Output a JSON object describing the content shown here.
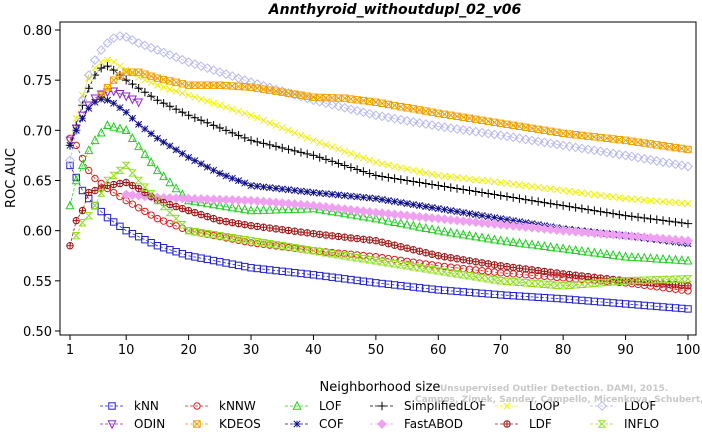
{
  "chart_data": {
    "type": "line",
    "title": "Annthyroid_withoutdupl_02_v06",
    "xlabel": "Neighborhood size",
    "ylabel": "ROC AUC",
    "xlim": [
      0,
      100
    ],
    "ylim": [
      0.5,
      0.8
    ],
    "x_ticks": [
      "1",
      "10",
      "20",
      "30",
      "40",
      "50",
      "60",
      "70",
      "80",
      "90",
      "100"
    ],
    "y_ticks": [
      "0.50",
      "0.55",
      "0.60",
      "0.65",
      "0.70",
      "0.75",
      "0.80"
    ],
    "watermark": [
      "Unsupervised Outlier Detection. DAMI, 2015.",
      "Campos, Zimek, Sander, Campello, Micenkova, Schubert, Assent, Houle"
    ],
    "legend_position": "bottom",
    "series": [
      {
        "name": "kNN",
        "color": "#1f1fd0",
        "marker": "square",
        "x": [
          1,
          2,
          3,
          4,
          5,
          7,
          10,
          15,
          20,
          30,
          40,
          50,
          60,
          70,
          80,
          90,
          100
        ],
        "y": [
          0.665,
          0.653,
          0.64,
          0.632,
          0.625,
          0.613,
          0.6,
          0.585,
          0.575,
          0.563,
          0.556,
          0.548,
          0.541,
          0.536,
          0.532,
          0.527,
          0.522
        ]
      },
      {
        "name": "kNNW",
        "color": "#e01e1e",
        "marker": "circle",
        "x": [
          1,
          2,
          3,
          4,
          5,
          7,
          10,
          15,
          20,
          30,
          40,
          50,
          60,
          70,
          80,
          90,
          100
        ],
        "y": [
          0.692,
          0.685,
          0.672,
          0.66,
          0.652,
          0.642,
          0.63,
          0.612,
          0.6,
          0.588,
          0.58,
          0.574,
          0.565,
          0.558,
          0.553,
          0.548,
          0.54
        ]
      },
      {
        "name": "LOF",
        "color": "#20d020",
        "marker": "triangle",
        "x": [
          1,
          2,
          3,
          4,
          5,
          7,
          10,
          15,
          20,
          25,
          30,
          40,
          50,
          60,
          70,
          80,
          90,
          100
        ],
        "y": [
          0.625,
          0.65,
          0.665,
          0.68,
          0.69,
          0.705,
          0.7,
          0.66,
          0.63,
          0.625,
          0.62,
          0.622,
          0.612,
          0.6,
          0.59,
          0.582,
          0.574,
          0.57
        ]
      },
      {
        "name": "SimplifiedLOF",
        "color": "#000000",
        "marker": "plus",
        "x": [
          1,
          2,
          3,
          4,
          5,
          6,
          7,
          8,
          10,
          12,
          15,
          20,
          30,
          40,
          50,
          60,
          70,
          80,
          90,
          100
        ],
        "y": [
          0.685,
          0.705,
          0.725,
          0.742,
          0.755,
          0.762,
          0.764,
          0.76,
          0.75,
          0.742,
          0.73,
          0.715,
          0.69,
          0.675,
          0.655,
          0.645,
          0.635,
          0.625,
          0.615,
          0.607
        ]
      },
      {
        "name": "LoOP",
        "color": "#f0f000",
        "marker": "x",
        "x": [
          1,
          2,
          3,
          4,
          5,
          6,
          7,
          8,
          10,
          12,
          15,
          20,
          30,
          40,
          50,
          60,
          70,
          80,
          90,
          100
        ],
        "y": [
          0.688,
          0.712,
          0.735,
          0.752,
          0.762,
          0.768,
          0.77,
          0.768,
          0.76,
          0.753,
          0.745,
          0.735,
          0.715,
          0.69,
          0.668,
          0.655,
          0.648,
          0.64,
          0.632,
          0.627
        ]
      },
      {
        "name": "LDOF",
        "color": "#b8b8f0",
        "marker": "diamond",
        "x": [
          1,
          2,
          3,
          4,
          5,
          6,
          7,
          8,
          9,
          10,
          12,
          15,
          20,
          30,
          40,
          50,
          60,
          70,
          80,
          90,
          100
        ],
        "y": [
          0.67,
          0.7,
          0.73,
          0.755,
          0.77,
          0.78,
          0.787,
          0.792,
          0.794,
          0.793,
          0.787,
          0.78,
          0.768,
          0.748,
          0.73,
          0.715,
          0.704,
          0.695,
          0.685,
          0.675,
          0.664
        ]
      },
      {
        "name": "ODIN",
        "color": "#9020d0",
        "marker": "triangle-down",
        "x": [
          1,
          2,
          3,
          4,
          5,
          6,
          7,
          8,
          10,
          12
        ],
        "y": [
          0.69,
          0.702,
          0.715,
          0.725,
          0.732,
          0.736,
          0.738,
          0.739,
          0.734,
          0.728
        ]
      },
      {
        "name": "KDEOS",
        "color": "#f0a000",
        "marker": "square-x",
        "x": [
          6,
          8,
          10,
          12,
          15,
          20,
          25,
          30,
          35,
          40,
          45,
          50,
          60,
          70,
          80,
          90,
          100
        ],
        "y": [
          0.735,
          0.75,
          0.758,
          0.758,
          0.752,
          0.745,
          0.745,
          0.743,
          0.738,
          0.733,
          0.732,
          0.728,
          0.717,
          0.707,
          0.697,
          0.69,
          0.681
        ]
      },
      {
        "name": "COF",
        "color": "#10108a",
        "marker": "star",
        "x": [
          1,
          2,
          3,
          4,
          5,
          6,
          7,
          8,
          10,
          12,
          15,
          20,
          25,
          30,
          40,
          50,
          60,
          70,
          80,
          90,
          100
        ],
        "y": [
          0.685,
          0.7,
          0.712,
          0.722,
          0.728,
          0.731,
          0.73,
          0.727,
          0.718,
          0.706,
          0.692,
          0.673,
          0.657,
          0.645,
          0.638,
          0.632,
          0.622,
          0.612,
          0.602,
          0.595,
          0.587
        ]
      },
      {
        "name": "FastABOD",
        "color": "#f0a0f0",
        "marker": "diamond-filled",
        "x": [
          10,
          15,
          20,
          30,
          40,
          50,
          60,
          70,
          80,
          90,
          100
        ],
        "y": [
          0.636,
          0.633,
          0.632,
          0.63,
          0.625,
          0.618,
          0.612,
          0.606,
          0.6,
          0.595,
          0.59
        ]
      },
      {
        "name": "LDF",
        "color": "#a01818",
        "marker": "circle-plus",
        "x": [
          1,
          2,
          3,
          4,
          5,
          7,
          10,
          12,
          15,
          20,
          25,
          30,
          40,
          50,
          60,
          70,
          80,
          90,
          100
        ],
        "y": [
          0.585,
          0.61,
          0.62,
          0.638,
          0.64,
          0.645,
          0.648,
          0.642,
          0.63,
          0.62,
          0.61,
          0.605,
          0.597,
          0.59,
          0.575,
          0.565,
          0.557,
          0.55,
          0.545
        ]
      },
      {
        "name": "INFLO",
        "color": "#90e020",
        "marker": "hourglass",
        "x": [
          2,
          3,
          4,
          5,
          7,
          10,
          12,
          15,
          20,
          25,
          30,
          40,
          50,
          60,
          70,
          80,
          90,
          100
        ],
        "y": [
          0.595,
          0.608,
          0.615,
          0.625,
          0.65,
          0.665,
          0.65,
          0.63,
          0.6,
          0.595,
          0.59,
          0.58,
          0.57,
          0.56,
          0.55,
          0.545,
          0.55,
          0.552
        ]
      }
    ]
  }
}
